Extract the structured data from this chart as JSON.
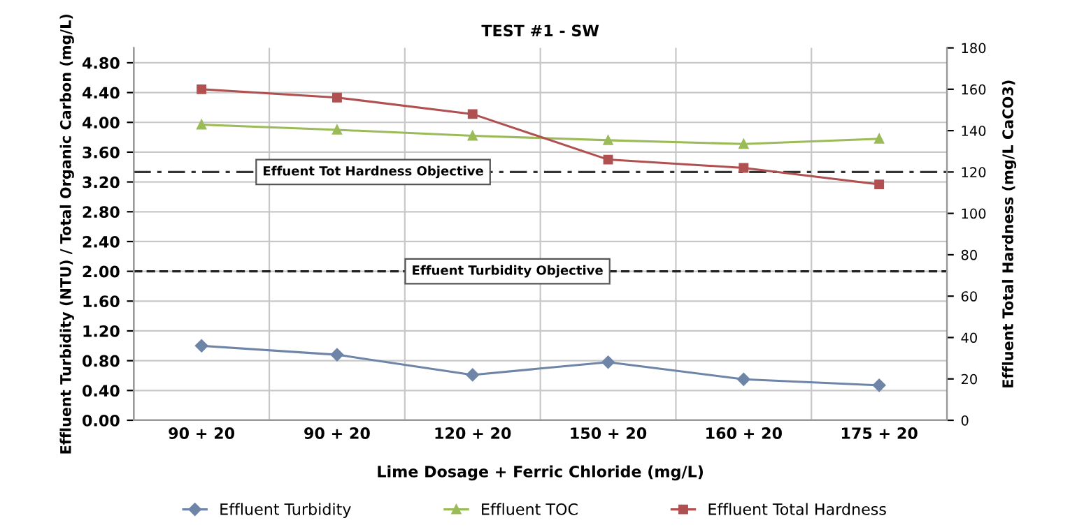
{
  "chart_data": {
    "type": "line",
    "title": "TEST #1 - SW",
    "xlabel": "Lime Dosage + Ferric Chloride (mg/L)",
    "ylabel": "Effluent Turbidity (NTU) / Total Organic Carbon (mg/L)",
    "y2label": "Effluent Total Hardness (mg/L CaCO3)",
    "categories": [
      "90 + 20",
      "90 + 20",
      "120 + 20",
      "150 + 20",
      "160 + 20",
      "175 + 20"
    ],
    "series": [
      {
        "name": "Effluent Turbidity",
        "color": "#6e85a8",
        "marker": "diamond",
        "values": [
          1.0,
          0.88,
          0.61,
          0.78,
          0.55,
          0.47
        ]
      },
      {
        "name": "Effluent TOC",
        "color": "#9bbb59",
        "marker": "triangle",
        "values": [
          3.97,
          3.9,
          3.82,
          3.76,
          3.71,
          3.78
        ]
      },
      {
        "name": "Effluent Total Hardness",
        "color": "#b05050",
        "marker": "square",
        "axis": "y2",
        "values": [
          160,
          156,
          148,
          126,
          122,
          114
        ]
      }
    ],
    "ylim": [
      0,
      5
    ],
    "yticks": [
      {
        "value": 0,
        "label": "0.00"
      },
      {
        "value": 0.4,
        "label": "0.40"
      },
      {
        "value": 0.8,
        "label": "0.80"
      },
      {
        "value": 1.2,
        "label": "1.20"
      },
      {
        "value": 1.6,
        "label": "1.60"
      },
      {
        "value": 2,
        "label": "2.00"
      },
      {
        "value": 2.4,
        "label": "2.40"
      },
      {
        "value": 2.8,
        "label": "2.80"
      },
      {
        "value": 3.2,
        "label": "3.20"
      },
      {
        "value": 3.6,
        "label": "3.60"
      },
      {
        "value": 4,
        "label": "4.00"
      },
      {
        "value": 4.4,
        "label": "4.40"
      },
      {
        "value": 4.8,
        "label": "4.80"
      }
    ],
    "y2lim": [
      0,
      180
    ],
    "y2ticks": [
      0,
      20,
      40,
      60,
      80,
      100,
      120,
      140,
      160,
      180
    ],
    "ref_lines": [
      {
        "axis": "y2",
        "value": 120,
        "label": "Effuent Tot Hardness Objective",
        "color": "#333333",
        "line_style": "dashdot"
      },
      {
        "axis": "y",
        "value": 2.0,
        "label": "Effuent Turbidity Objective",
        "color": "#222222",
        "line_style": "dashed"
      }
    ],
    "grid": true,
    "legend": "bottom"
  }
}
